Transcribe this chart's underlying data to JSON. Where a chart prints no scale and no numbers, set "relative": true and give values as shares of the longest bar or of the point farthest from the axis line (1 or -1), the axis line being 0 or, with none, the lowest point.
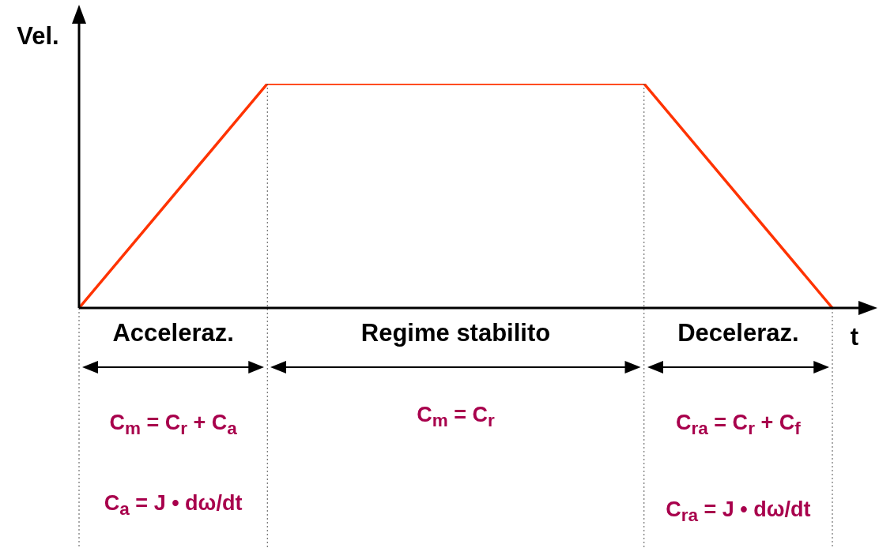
{
  "chart_data": {
    "type": "line",
    "relative": true,
    "xlabel": "t",
    "ylabel": "Vel.",
    "categories": [
      null,
      null,
      null,
      null,
      null
    ],
    "series": [
      {
        "color": "#ff3300",
        "values": [
          0,
          1,
          1,
          1,
          0
        ]
      }
    ],
    "marker": "none",
    "legend": false,
    "annotations": [
      "Acceleraz.",
      "Regime stabilito",
      "Deceleraz.",
      "C$_{m}$ = C$_{r}$ + C$_{a}$",
      "C$_{a}$ = J • dω/dt",
      "C$_{m}$ =  C$_{r}$",
      "C$_{ra}$ = C$_{r}$ + C$_{f}$",
      "C$_{ra}$ = J • dω/dt"
    ]
  }
}
